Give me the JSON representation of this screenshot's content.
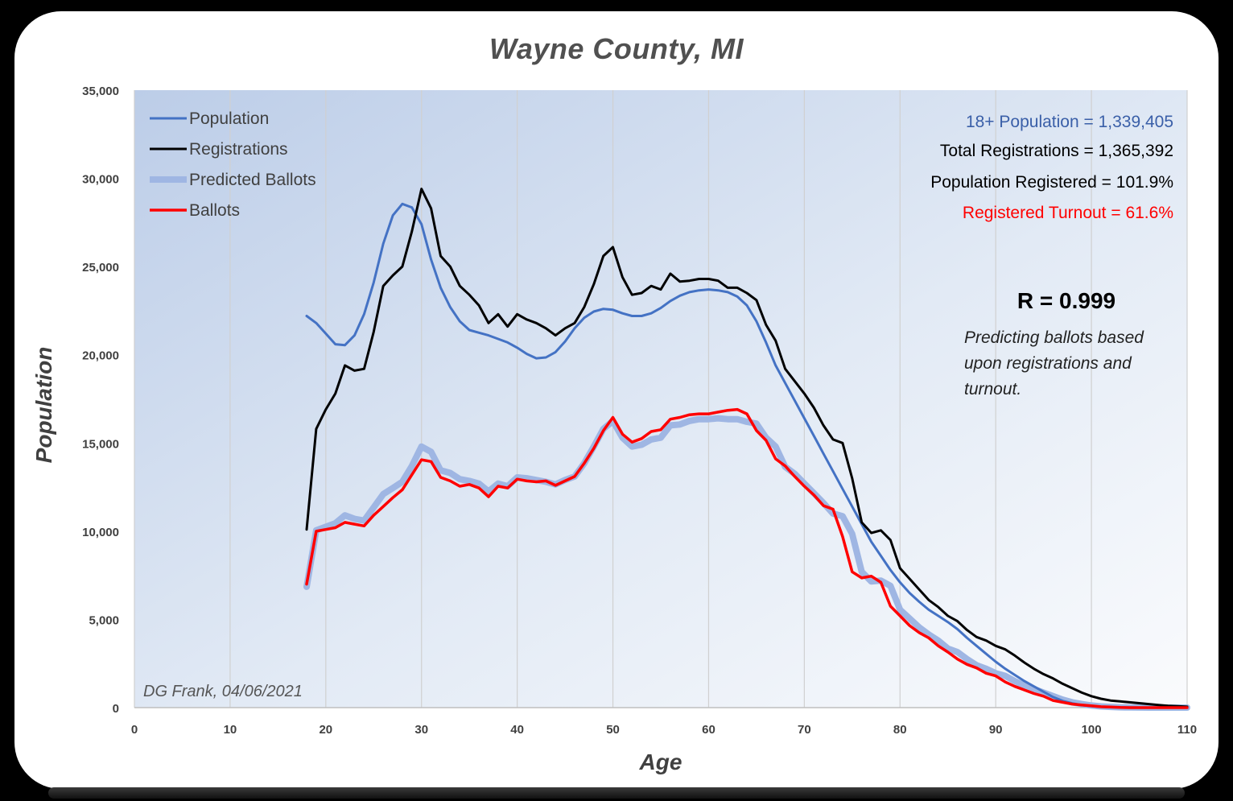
{
  "chart_data": {
    "type": "line",
    "title": "Wayne County, MI",
    "xlabel": "Age",
    "ylabel": "Population",
    "xlim": [
      0,
      110
    ],
    "ylim": [
      0,
      35000
    ],
    "x_ticks": [
      "0",
      "10",
      "20",
      "30",
      "40",
      "50",
      "60",
      "70",
      "80",
      "90",
      "100",
      "110"
    ],
    "y_ticks": [
      "0",
      "5,000",
      "10,000",
      "15,000",
      "20,000",
      "25,000",
      "30,000",
      "35,000"
    ],
    "grid": "vertical",
    "legend_position": "top-left",
    "x": [
      18,
      19,
      20,
      21,
      22,
      23,
      24,
      25,
      26,
      27,
      28,
      29,
      30,
      31,
      32,
      33,
      34,
      35,
      36,
      37,
      38,
      39,
      40,
      41,
      42,
      43,
      44,
      45,
      46,
      47,
      48,
      49,
      50,
      51,
      52,
      53,
      54,
      55,
      56,
      57,
      58,
      59,
      60,
      61,
      62,
      63,
      64,
      65,
      66,
      67,
      68,
      69,
      70,
      71,
      72,
      73,
      74,
      75,
      76,
      77,
      78,
      79,
      80,
      81,
      82,
      83,
      84,
      85,
      86,
      87,
      88,
      89,
      90,
      91,
      92,
      93,
      94,
      95,
      96,
      97,
      98,
      99,
      100,
      101,
      102,
      103,
      104,
      105,
      106,
      107,
      108,
      109,
      110
    ],
    "series": [
      {
        "name": "Population",
        "color": "#4472C4",
        "width": 3,
        "values": [
          22200,
          21800,
          21200,
          20600,
          20550,
          21100,
          22300,
          24100,
          26300,
          27900,
          28550,
          28350,
          27400,
          25400,
          23800,
          22700,
          21900,
          21400,
          21250,
          21100,
          20900,
          20700,
          20400,
          20050,
          19800,
          19850,
          20150,
          20750,
          21500,
          22100,
          22450,
          22600,
          22550,
          22350,
          22200,
          22200,
          22350,
          22650,
          23050,
          23350,
          23550,
          23650,
          23700,
          23650,
          23550,
          23300,
          22800,
          21900,
          20700,
          19400,
          18400,
          17400,
          16400,
          15400,
          14400,
          13400,
          12400,
          11400,
          10400,
          9400,
          8600,
          7800,
          7100,
          6500,
          6000,
          5550,
          5200,
          4850,
          4450,
          3950,
          3500,
          3050,
          2600,
          2200,
          1850,
          1500,
          1200,
          900,
          600,
          380,
          240,
          140,
          80,
          40,
          20,
          10,
          5,
          0,
          0,
          0,
          0,
          0,
          0
        ]
      },
      {
        "name": "Registrations",
        "color": "#000000",
        "width": 3,
        "values": [
          10100,
          15800,
          16900,
          17800,
          19400,
          19100,
          19200,
          21300,
          23900,
          24500,
          25000,
          27000,
          29400,
          28300,
          25600,
          25000,
          23900,
          23400,
          22800,
          21800,
          22300,
          21600,
          22300,
          22000,
          21800,
          21500,
          21100,
          21500,
          21800,
          22700,
          24000,
          25600,
          26100,
          24400,
          23400,
          23500,
          23900,
          23700,
          24600,
          24150,
          24200,
          24300,
          24300,
          24200,
          23800,
          23800,
          23500,
          23100,
          21700,
          20800,
          19200,
          18500,
          17800,
          17000,
          16000,
          15200,
          15000,
          13000,
          10500,
          9900,
          10050,
          9500,
          7900,
          7300,
          6700,
          6100,
          5700,
          5200,
          4900,
          4400,
          4000,
          3800,
          3500,
          3300,
          2950,
          2550,
          2200,
          1900,
          1650,
          1350,
          1100,
          850,
          650,
          500,
          400,
          350,
          300,
          250,
          200,
          150,
          100,
          80,
          50
        ]
      },
      {
        "name": "Predicted Ballots",
        "color": "#9FB6E3",
        "width": 8,
        "values": [
          6850,
          10050,
          10250,
          10450,
          10900,
          10700,
          10600,
          11350,
          12100,
          12450,
          12800,
          13700,
          14800,
          14500,
          13450,
          13300,
          12950,
          12850,
          12700,
          12250,
          12700,
          12550,
          13050,
          13000,
          12900,
          12800,
          12650,
          12900,
          13100,
          13850,
          14800,
          15800,
          16250,
          15300,
          14800,
          14900,
          15200,
          15300,
          16000,
          16050,
          16250,
          16350,
          16350,
          16400,
          16350,
          16350,
          16200,
          16100,
          15300,
          14800,
          13650,
          13250,
          12700,
          12150,
          11600,
          11000,
          10850,
          9850,
          7700,
          7150,
          7200,
          6900,
          5550,
          5050,
          4550,
          4150,
          3800,
          3350,
          3150,
          2750,
          2400,
          2200,
          1950,
          1800,
          1500,
          1250,
          1050,
          850,
          650,
          450,
          300,
          200,
          120,
          70,
          40,
          20,
          10,
          5,
          0,
          0,
          0,
          0,
          0
        ]
      },
      {
        "name": "Ballots",
        "color": "#FF0000",
        "width": 3.5,
        "values": [
          7000,
          10000,
          10100,
          10200,
          10500,
          10400,
          10300,
          10900,
          11400,
          11900,
          12350,
          13200,
          14050,
          13950,
          13050,
          12850,
          12550,
          12650,
          12450,
          11950,
          12550,
          12450,
          12950,
          12850,
          12800,
          12850,
          12600,
          12850,
          13100,
          13850,
          14700,
          15700,
          16450,
          15500,
          15050,
          15250,
          15650,
          15750,
          16350,
          16450,
          16600,
          16650,
          16650,
          16750,
          16850,
          16900,
          16650,
          15700,
          15150,
          14100,
          13700,
          13100,
          12550,
          12050,
          11450,
          11250,
          9700,
          7700,
          7350,
          7450,
          7100,
          5750,
          5200,
          4650,
          4250,
          3950,
          3500,
          3150,
          2750,
          2450,
          2250,
          1950,
          1800,
          1450,
          1200,
          1000,
          800,
          650,
          400,
          300,
          200,
          150,
          100,
          50,
          30,
          10,
          0,
          0,
          0,
          0,
          0,
          0,
          0
        ]
      }
    ],
    "annotations": {
      "population_18plus": "18+ Population = 1,339,405",
      "total_registrations": "Total Registrations = 1,365,392",
      "population_registered": "Population Registered = 101.9%",
      "registered_turnout": "Registered Turnout = 61.6%",
      "r_value": "R = 0.999",
      "note_lines": [
        "Predicting ballots based",
        "upon registrations and",
        "turnout."
      ],
      "credit": "DG Frank, 04/06/2021"
    },
    "annotation_colors": {
      "population_18plus": "#3A5FA8",
      "total_registrations": "#000000",
      "population_registered": "#000000",
      "registered_turnout": "#FF0000"
    }
  }
}
